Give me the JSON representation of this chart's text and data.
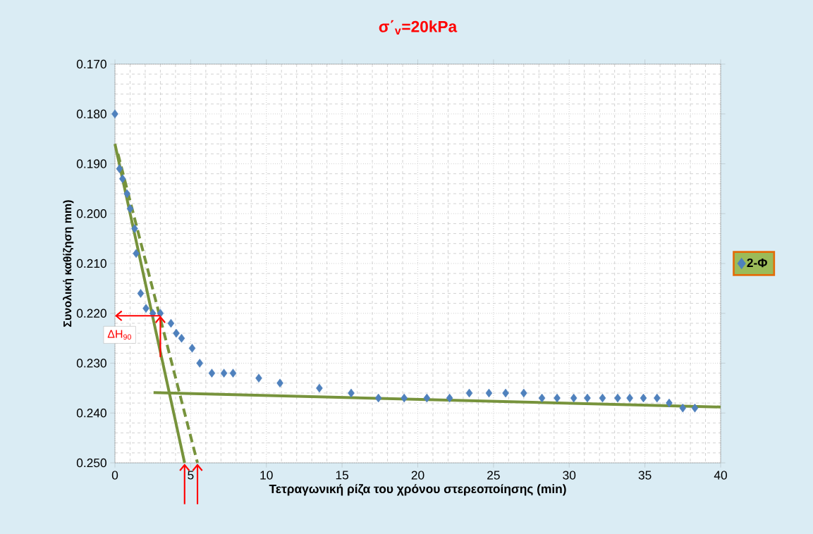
{
  "chart_data": {
    "type": "scatter",
    "title": "σ΄$_{v}$=20kPa",
    "xlabel": "Τετραγωνική ρίζα του χρόνου στερεοποίησης (min)",
    "ylabel": "Συνολική καθίζηση mm)",
    "xlim": [
      0,
      40
    ],
    "ylim": [
      0.25,
      0.17
    ],
    "xticks": [
      0,
      5,
      10,
      15,
      20,
      25,
      30,
      35,
      40
    ],
    "yticks": [
      {
        "value": 0.17,
        "label": "0.170"
      },
      {
        "value": 0.18,
        "label": "0.180"
      },
      {
        "value": 0.19,
        "label": "0.190"
      },
      {
        "value": 0.2,
        "label": "0.200"
      },
      {
        "value": 0.21,
        "label": "0.210"
      },
      {
        "value": 0.22,
        "label": "0.220"
      },
      {
        "value": 0.23,
        "label": "0.230"
      },
      {
        "value": 0.24,
        "label": "0.240"
      },
      {
        "value": 0.25,
        "label": "0.250"
      }
    ],
    "grid": true,
    "legend": "right",
    "series": [
      {
        "name": "2-Φ",
        "marker": "diamond",
        "color": "#4f81bd",
        "x": [
          0,
          0.3,
          0.5,
          0.8,
          1.0,
          1.3,
          1.4,
          1.7,
          2.05,
          2.5,
          3.0,
          3.7,
          4.05,
          4.4,
          5.1,
          5.6,
          6.4,
          7.2,
          7.8,
          9.5,
          10.9,
          13.5,
          15.6,
          17.4,
          19.1,
          20.6,
          22.1,
          23.4,
          24.7,
          25.8,
          27.0,
          28.2,
          29.2,
          30.3,
          31.2,
          32.2,
          33.2,
          34.0,
          34.9,
          35.8,
          36.6,
          37.5,
          38.3
        ],
        "values": [
          0.18,
          0.191,
          0.193,
          0.196,
          0.199,
          0.203,
          0.208,
          0.216,
          0.219,
          0.22,
          0.22,
          0.222,
          0.224,
          0.225,
          0.227,
          0.23,
          0.232,
          0.232,
          0.232,
          0.233,
          0.234,
          0.235,
          0.236,
          0.237,
          0.237,
          0.237,
          0.237,
          0.236,
          0.236,
          0.236,
          0.236,
          0.237,
          0.237,
          0.237,
          0.237,
          0.237,
          0.237,
          0.237,
          0.237,
          0.237,
          0.238,
          0.239,
          0.239
        ]
      },
      {
        "type": "line",
        "line_style": "solid",
        "color": "#77933c",
        "x": [
          0,
          4.6
        ],
        "values": [
          0.186,
          0.25
        ]
      },
      {
        "type": "line",
        "line_style": "dashed",
        "color": "#77933c",
        "x": [
          0.2,
          5.45
        ],
        "values": [
          0.188,
          0.25
        ]
      },
      {
        "type": "line",
        "line_style": "solid",
        "color": "#77933c",
        "x": [
          2.55,
          40
        ],
        "values": [
          0.2359,
          0.2388
        ]
      }
    ],
    "annotations": [
      {
        "text": "ΔH$_{90}$",
        "x": 3.0,
        "y": 0.2205
      }
    ]
  }
}
